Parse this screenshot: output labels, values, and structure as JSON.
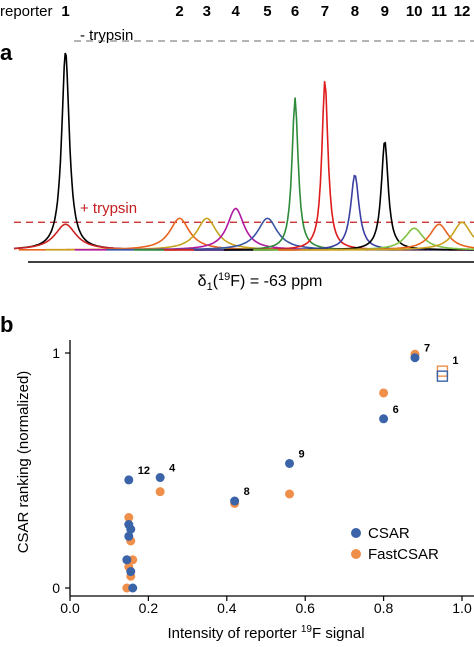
{
  "chart_data": [
    {
      "type": "line",
      "panel_label": "a",
      "header_label": "reporter",
      "reporters": [
        "1",
        "2",
        "3",
        "4",
        "5",
        "6",
        "7",
        "8",
        "9",
        "10",
        "11",
        "12"
      ],
      "xlabel_parts": [
        "δ",
        "1",
        "(",
        "19",
        "F) = -63 ppm"
      ],
      "annotations": {
        "minus_trypsin": "- trypsin",
        "plus_trypsin": "+ trypsin"
      },
      "plus_trypsin_level": 0.14,
      "series": [
        {
          "name": "1",
          "condition": "- trypsin",
          "color": "#000000",
          "position": 0.112,
          "height": 1.0,
          "width": 0.01
        },
        {
          "name": "1",
          "condition": "+ trypsin",
          "color": "#cc2222",
          "position": 0.112,
          "height": 0.13,
          "width": 0.028
        },
        {
          "name": "2",
          "condition": "- trypsin",
          "color": "#e8641e",
          "position": 0.36,
          "height": 0.16,
          "width": 0.026
        },
        {
          "name": "3",
          "condition": "- trypsin",
          "color": "#c8a21e",
          "position": 0.419,
          "height": 0.16,
          "width": 0.026
        },
        {
          "name": "4",
          "condition": "- trypsin",
          "color": "#b01aa0",
          "position": 0.482,
          "height": 0.21,
          "width": 0.022
        },
        {
          "name": "5",
          "condition": "- trypsin",
          "color": "#3a55a5",
          "position": 0.551,
          "height": 0.16,
          "width": 0.026
        },
        {
          "name": "6",
          "condition": "- trypsin",
          "color": "#2e8b3a",
          "position": 0.611,
          "height": 0.77,
          "width": 0.008
        },
        {
          "name": "7",
          "condition": "- trypsin",
          "color": "#e01b1b",
          "position": 0.676,
          "height": 0.86,
          "width": 0.008
        },
        {
          "name": "8",
          "condition": "- trypsin",
          "color": "#3a3fa0",
          "position": 0.741,
          "height": 0.38,
          "width": 0.011
        },
        {
          "name": "9",
          "condition": "- trypsin",
          "color": "#000000",
          "position": 0.806,
          "height": 0.55,
          "width": 0.009
        },
        {
          "name": "10",
          "condition": "- trypsin",
          "color": "#7fc241",
          "position": 0.87,
          "height": 0.11,
          "width": 0.024
        },
        {
          "name": "11",
          "condition": "- trypsin",
          "color": "#e8641e",
          "position": 0.924,
          "height": 0.13,
          "width": 0.024
        },
        {
          "name": "12",
          "condition": "- trypsin",
          "color": "#c8a21e",
          "position": 0.974,
          "height": 0.14,
          "width": 0.024
        }
      ]
    },
    {
      "type": "scatter",
      "panel_label": "b",
      "xlabel_parts": [
        "Intensity of reporter ",
        "19",
        "F signal"
      ],
      "ylabel": "CSAR ranking (normalized)",
      "xlim": [
        0,
        1
      ],
      "ylim": [
        0,
        1
      ],
      "xticks": [
        "0.0",
        "0.2",
        "0.4",
        "0.6",
        "0.8",
        "1.0"
      ],
      "yticks": [
        "0",
        "1"
      ],
      "legend_position": "bottom-right",
      "series": [
        {
          "name": "CSAR",
          "color": "#3a63a8",
          "points": [
            {
              "x": 0.88,
              "y": 0.98,
              "label": "7"
            },
            {
              "x": 0.8,
              "y": 0.72,
              "label": "6"
            },
            {
              "x": 0.56,
              "y": 0.53,
              "label": "9"
            },
            {
              "x": 0.42,
              "y": 0.37,
              "label": "8"
            },
            {
              "x": 0.23,
              "y": 0.47,
              "label": "4"
            },
            {
              "x": 0.15,
              "y": 0.46,
              "label": "12"
            },
            {
              "x": 0.15,
              "y": 0.27
            },
            {
              "x": 0.155,
              "y": 0.25
            },
            {
              "x": 0.15,
              "y": 0.22
            },
            {
              "x": 0.145,
              "y": 0.12
            },
            {
              "x": 0.155,
              "y": 0.07
            },
            {
              "x": 0.16,
              "y": 0.0
            }
          ]
        },
        {
          "name": "FastCSAR",
          "color": "#ef8f4a",
          "points": [
            {
              "x": 0.88,
              "y": 0.995
            },
            {
              "x": 0.8,
              "y": 0.83
            },
            {
              "x": 0.56,
              "y": 0.4
            },
            {
              "x": 0.42,
              "y": 0.36
            },
            {
              "x": 0.23,
              "y": 0.41
            },
            {
              "x": 0.15,
              "y": 0.3
            },
            {
              "x": 0.155,
              "y": 0.2
            },
            {
              "x": 0.16,
              "y": 0.12
            },
            {
              "x": 0.15,
              "y": 0.09
            },
            {
              "x": 0.155,
              "y": 0.05
            },
            {
              "x": 0.145,
              "y": 0.0
            }
          ]
        }
      ],
      "open_markers": [
        {
          "label": "1",
          "x": 0.95,
          "y": 0.91,
          "colors": [
            "#3a63a8",
            "#ef8f4a"
          ]
        }
      ]
    }
  ]
}
